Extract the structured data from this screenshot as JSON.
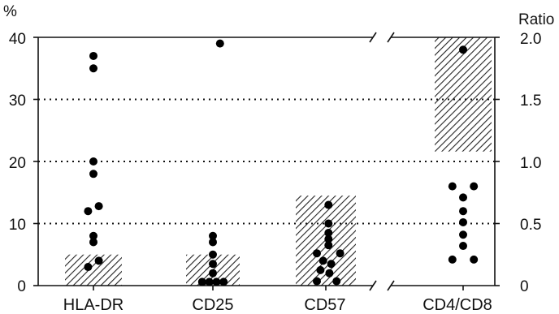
{
  "chart_data": {
    "type": "scatter",
    "title": "",
    "ylabel_left": "%",
    "ylabel_right": "Ratio",
    "ylim_left": [
      0,
      40
    ],
    "ylim_right": [
      0,
      2.0
    ],
    "yticks_left": [
      "0",
      "10",
      "20",
      "30",
      "40"
    ],
    "yticks_right": [
      "0",
      "0.5",
      "1.0",
      "1.5",
      "2.0"
    ],
    "grid": "dotted horizontal at 10, 20, 30",
    "axis_break": "top and bottom between CD57 and CD4/CD8",
    "categories": [
      "HLA-DR",
      "CD25",
      "CD57",
      "CD4/CD8"
    ],
    "normal_ranges": [
      {
        "category": "HLA-DR",
        "axis": "left",
        "low": 0,
        "high": 5
      },
      {
        "category": "CD25",
        "axis": "left",
        "low": 0,
        "high": 5
      },
      {
        "category": "CD57",
        "axis": "left",
        "low": 0,
        "high": 14.5
      },
      {
        "category": "CD4/CD8",
        "axis": "right",
        "low": 1.08,
        "high": 2.0
      }
    ],
    "series": [
      {
        "category": "HLA-DR",
        "axis": "left",
        "points": [
          {
            "offset": 0,
            "value": 37
          },
          {
            "offset": 0,
            "value": 35
          },
          {
            "offset": 0,
            "value": 20
          },
          {
            "offset": 0,
            "value": 18
          },
          {
            "offset": 0.3,
            "value": 12.8
          },
          {
            "offset": -0.3,
            "value": 12
          },
          {
            "offset": 0,
            "value": 8
          },
          {
            "offset": 0,
            "value": 7
          },
          {
            "offset": 0.3,
            "value": 4
          },
          {
            "offset": -0.3,
            "value": 3
          }
        ]
      },
      {
        "category": "CD25",
        "axis": "left",
        "points": [
          {
            "offset": 0.4,
            "value": 39
          },
          {
            "offset": 0,
            "value": 8
          },
          {
            "offset": 0,
            "value": 7
          },
          {
            "offset": 0,
            "value": 5
          },
          {
            "offset": 0,
            "value": 3.5
          },
          {
            "offset": 0,
            "value": 2
          },
          {
            "offset": -0.6,
            "value": 0.6
          },
          {
            "offset": -0.2,
            "value": 0.6
          },
          {
            "offset": 0.2,
            "value": 0.6
          },
          {
            "offset": 0.6,
            "value": 0.6
          }
        ]
      },
      {
        "category": "CD57",
        "axis": "left",
        "points": [
          {
            "offset": 0.15,
            "value": 13
          },
          {
            "offset": 0.15,
            "value": 10
          },
          {
            "offset": 0.15,
            "value": 8.5
          },
          {
            "offset": 0.15,
            "value": 7.5
          },
          {
            "offset": 0.15,
            "value": 6.5
          },
          {
            "offset": -0.5,
            "value": 5.2
          },
          {
            "offset": 0.8,
            "value": 5.2
          },
          {
            "offset": -0.15,
            "value": 4
          },
          {
            "offset": 0.3,
            "value": 3.5
          },
          {
            "offset": -0.3,
            "value": 2.5
          },
          {
            "offset": 0.2,
            "value": 2
          },
          {
            "offset": -0.5,
            "value": 0.7
          },
          {
            "offset": 0.6,
            "value": 0.7
          }
        ]
      },
      {
        "category": "CD4/CD8",
        "axis": "right",
        "points": [
          {
            "offset": 0,
            "value": 1.9
          },
          {
            "offset": -0.6,
            "value": 0.8
          },
          {
            "offset": 0.6,
            "value": 0.8
          },
          {
            "offset": 0,
            "value": 0.71
          },
          {
            "offset": 0,
            "value": 0.6
          },
          {
            "offset": 0,
            "value": 0.51
          },
          {
            "offset": 0,
            "value": 0.41
          },
          {
            "offset": 0,
            "value": 0.32
          },
          {
            "offset": -0.6,
            "value": 0.21
          },
          {
            "offset": 0.6,
            "value": 0.21
          }
        ]
      }
    ]
  }
}
